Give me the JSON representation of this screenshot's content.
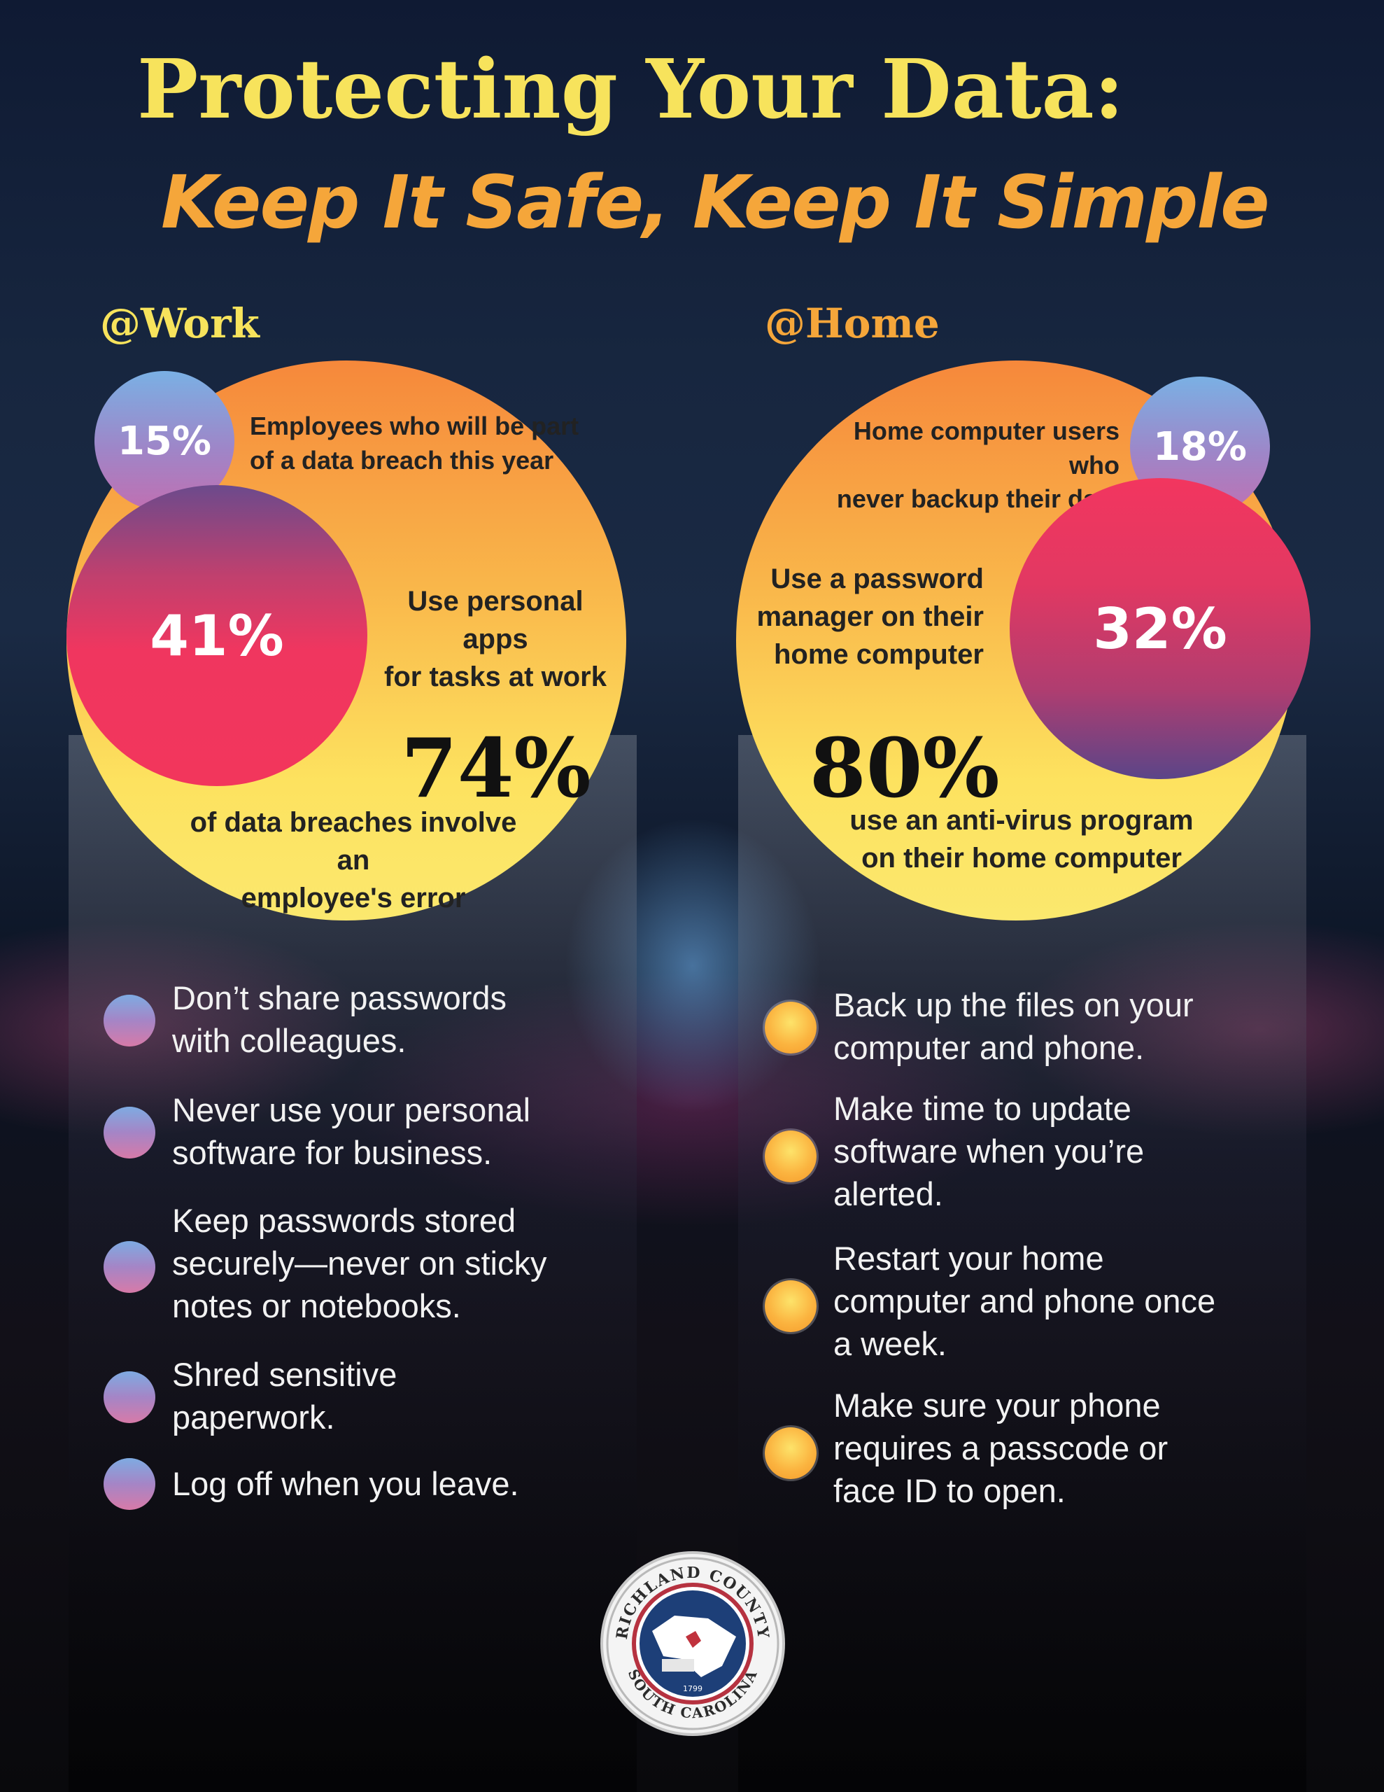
{
  "header": {
    "title": "Protecting Your Data:",
    "subtitle": "Keep It Safe, Keep It Simple"
  },
  "work": {
    "label": "@Work",
    "stat_15": {
      "value": "15%",
      "text_line1": "Employees who will be part",
      "text_line2": "of a data breach this year"
    },
    "stat_41": {
      "value": "41%",
      "text_line1": "Use personal apps",
      "text_line2": "for tasks at work"
    },
    "stat_74": {
      "value": "74%",
      "text_line1": "of data breaches involve an",
      "text_line2": "employee's error"
    },
    "tips": [
      {
        "line1": "Don’t share passwords",
        "line2": "with colleagues."
      },
      {
        "line1": "Never use your personal",
        "line2": "software for business."
      },
      {
        "line1": "Keep passwords stored",
        "line2": "securely—never on sticky",
        "line3": "notes or notebooks."
      },
      {
        "line1": "Shred sensitive",
        "line2": "paperwork."
      },
      {
        "line1": "Log off when you leave."
      }
    ]
  },
  "home": {
    "label": "@Home",
    "stat_18": {
      "value": "18%",
      "text_line1": "Home computer users who",
      "text_line2": "never backup their data"
    },
    "stat_32": {
      "value": "32%",
      "text_line1": "Use a password",
      "text_line2": "manager on their",
      "text_line3": "home computer"
    },
    "stat_80": {
      "value": "80%",
      "text_line1": "use an anti-virus program",
      "text_line2": "on their home computer"
    },
    "tips": [
      {
        "line1": "Back up the files on your",
        "line2": "computer and phone."
      },
      {
        "line1": "Make time to update",
        "line2": "software when you’re",
        "line3": "alerted."
      },
      {
        "line1": "Restart your home",
        "line2": "computer and phone once",
        "line3": "a week."
      },
      {
        "line1": "Make sure your phone",
        "line2": "requires a passcode or",
        "line3": "face ID to open."
      }
    ]
  },
  "seal": {
    "top_text": "RICHLAND COUNTY",
    "bottom_text": "SOUTH CAROLINA",
    "year": "1799"
  },
  "colors": {
    "title_yellow": "#f7e35c",
    "subtitle_orange": "#f5a63a",
    "stat_pink": "#f2365f",
    "bubble_blue": "#7ab0e4"
  }
}
